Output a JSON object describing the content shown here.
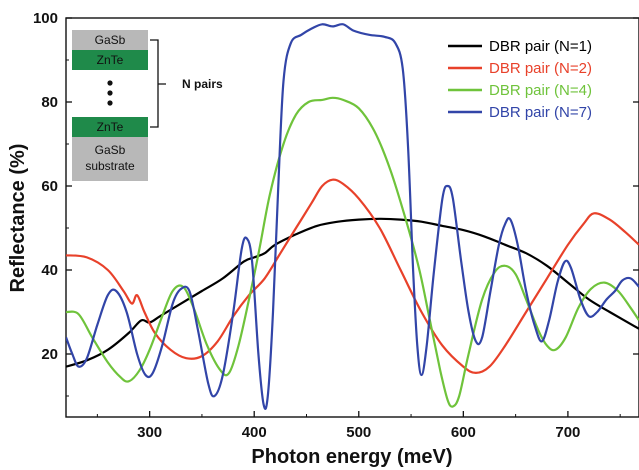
{
  "chart_data": {
    "type": "line",
    "xlabel": "Photon energy (meV)",
    "ylabel": "Reflectance (%)",
    "xlim": [
      220,
      768
    ],
    "ylim": [
      5,
      100
    ],
    "x_ticks": [
      300,
      400,
      500,
      600,
      700
    ],
    "y_ticks": [
      20,
      40,
      60,
      80,
      100
    ],
    "grid": false,
    "legend_position": "top-right",
    "series": [
      {
        "name": "DBR pair (N=1)",
        "color": "#000000",
        "points": [
          [
            220,
            17
          ],
          [
            240,
            18.5
          ],
          [
            260,
            21
          ],
          [
            280,
            25
          ],
          [
            292,
            28
          ],
          [
            300,
            27.5
          ],
          [
            310,
            29
          ],
          [
            330,
            32
          ],
          [
            350,
            35
          ],
          [
            370,
            38
          ],
          [
            390,
            42
          ],
          [
            400,
            43
          ],
          [
            410,
            44
          ],
          [
            420,
            46
          ],
          [
            440,
            48.5
          ],
          [
            460,
            50.5
          ],
          [
            480,
            51.5
          ],
          [
            500,
            52
          ],
          [
            520,
            52.2
          ],
          [
            540,
            52
          ],
          [
            560,
            51.5
          ],
          [
            580,
            50.5
          ],
          [
            600,
            49.5
          ],
          [
            620,
            48
          ],
          [
            640,
            46
          ],
          [
            660,
            44
          ],
          [
            680,
            41
          ],
          [
            700,
            37
          ],
          [
            720,
            33
          ],
          [
            740,
            30
          ],
          [
            768,
            26
          ]
        ]
      },
      {
        "name": "DBR pair (N=2)",
        "color": "#e8412a",
        "points": [
          [
            220,
            43.5
          ],
          [
            240,
            43
          ],
          [
            260,
            40
          ],
          [
            275,
            35
          ],
          [
            283,
            32
          ],
          [
            288,
            34
          ],
          [
            295,
            30
          ],
          [
            305,
            25
          ],
          [
            320,
            21
          ],
          [
            335,
            19
          ],
          [
            350,
            19.5
          ],
          [
            365,
            23
          ],
          [
            380,
            29
          ],
          [
            395,
            34
          ],
          [
            410,
            38
          ],
          [
            425,
            44
          ],
          [
            440,
            50
          ],
          [
            455,
            56
          ],
          [
            465,
            60
          ],
          [
            475,
            61.5
          ],
          [
            485,
            60.5
          ],
          [
            500,
            57
          ],
          [
            520,
            50
          ],
          [
            540,
            40
          ],
          [
            560,
            30
          ],
          [
            580,
            22
          ],
          [
            600,
            17
          ],
          [
            612,
            15.5
          ],
          [
            625,
            17
          ],
          [
            640,
            22
          ],
          [
            660,
            30
          ],
          [
            680,
            38
          ],
          [
            700,
            46
          ],
          [
            715,
            51
          ],
          [
            725,
            53.5
          ],
          [
            740,
            52
          ],
          [
            755,
            49
          ],
          [
            768,
            46
          ]
        ]
      },
      {
        "name": "DBR pair (N=4)",
        "color": "#6fc33b",
        "points": [
          [
            220,
            30
          ],
          [
            232,
            29.5
          ],
          [
            245,
            24
          ],
          [
            260,
            18
          ],
          [
            272,
            14.5
          ],
          [
            280,
            13.5
          ],
          [
            290,
            16
          ],
          [
            300,
            21
          ],
          [
            312,
            29
          ],
          [
            322,
            35
          ],
          [
            332,
            36
          ],
          [
            342,
            31
          ],
          [
            355,
            22
          ],
          [
            368,
            16
          ],
          [
            376,
            15.5
          ],
          [
            385,
            22
          ],
          [
            395,
            33
          ],
          [
            405,
            45
          ],
          [
            415,
            58
          ],
          [
            428,
            70
          ],
          [
            440,
            77
          ],
          [
            452,
            80
          ],
          [
            465,
            80.5
          ],
          [
            475,
            81
          ],
          [
            485,
            80.5
          ],
          [
            500,
            78.5
          ],
          [
            515,
            73
          ],
          [
            530,
            64
          ],
          [
            545,
            52
          ],
          [
            558,
            40
          ],
          [
            568,
            28
          ],
          [
            578,
            16
          ],
          [
            585,
            9
          ],
          [
            590,
            7.5
          ],
          [
            596,
            10
          ],
          [
            605,
            20
          ],
          [
            618,
            33
          ],
          [
            630,
            39.5
          ],
          [
            640,
            41
          ],
          [
            650,
            39
          ],
          [
            660,
            33
          ],
          [
            672,
            25.5
          ],
          [
            680,
            22
          ],
          [
            688,
            21
          ],
          [
            698,
            24
          ],
          [
            710,
            31
          ],
          [
            722,
            35.5
          ],
          [
            735,
            37
          ],
          [
            748,
            35
          ],
          [
            760,
            31
          ],
          [
            768,
            28
          ]
        ]
      },
      {
        "name": "DBR pair (N=7)",
        "color": "#3245a8",
        "points": [
          [
            220,
            24
          ],
          [
            226,
            20
          ],
          [
            232,
            17
          ],
          [
            240,
            19
          ],
          [
            250,
            27
          ],
          [
            260,
            34
          ],
          [
            268,
            35
          ],
          [
            278,
            30
          ],
          [
            288,
            20
          ],
          [
            296,
            15
          ],
          [
            303,
            15.5
          ],
          [
            312,
            22
          ],
          [
            322,
            32
          ],
          [
            330,
            35.5
          ],
          [
            338,
            35
          ],
          [
            346,
            26
          ],
          [
            356,
            13
          ],
          [
            362,
            10
          ],
          [
            370,
            15
          ],
          [
            380,
            30
          ],
          [
            388,
            45
          ],
          [
            393,
            47.5
          ],
          [
            398,
            42
          ],
          [
            404,
            20
          ],
          [
            409,
            8
          ],
          [
            413,
            10
          ],
          [
            418,
            30
          ],
          [
            423,
            60
          ],
          [
            428,
            85
          ],
          [
            435,
            94
          ],
          [
            445,
            96
          ],
          [
            455,
            97.5
          ],
          [
            465,
            98.5
          ],
          [
            475,
            98
          ],
          [
            485,
            98.5
          ],
          [
            495,
            97
          ],
          [
            510,
            96
          ],
          [
            525,
            95.5
          ],
          [
            535,
            94
          ],
          [
            542,
            88
          ],
          [
            547,
            70
          ],
          [
            552,
            40
          ],
          [
            556,
            22
          ],
          [
            560,
            15
          ],
          [
            565,
            22
          ],
          [
            572,
            40
          ],
          [
            580,
            57
          ],
          [
            585,
            60
          ],
          [
            590,
            57
          ],
          [
            598,
            42
          ],
          [
            605,
            30
          ],
          [
            612,
            23
          ],
          [
            618,
            24
          ],
          [
            626,
            35
          ],
          [
            634,
            46
          ],
          [
            640,
            51
          ],
          [
            645,
            52
          ],
          [
            652,
            46
          ],
          [
            660,
            35
          ],
          [
            668,
            27
          ],
          [
            675,
            23
          ],
          [
            682,
            28
          ],
          [
            690,
            37
          ],
          [
            697,
            42
          ],
          [
            703,
            40.5
          ],
          [
            712,
            33
          ],
          [
            720,
            29
          ],
          [
            728,
            30
          ],
          [
            737,
            33
          ],
          [
            745,
            35
          ],
          [
            752,
            37.5
          ],
          [
            760,
            38
          ],
          [
            768,
            36
          ]
        ]
      }
    ]
  },
  "inset": {
    "layers": [
      "GaSb",
      "ZnTe",
      "ZnTe",
      "GaSb substrate"
    ],
    "substrate_lines": [
      "GaSb",
      "substrate"
    ],
    "label": "N pairs",
    "colors": {
      "gasb": "#b8b8b8",
      "znte": "#1f8a4a"
    }
  }
}
